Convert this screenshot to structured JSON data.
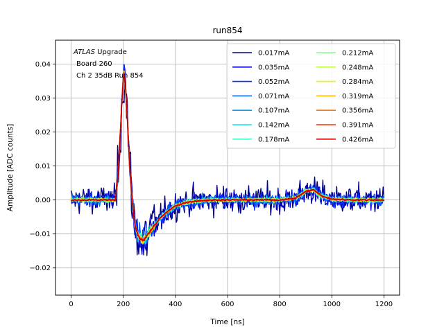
{
  "chart_data": {
    "type": "line",
    "title": "run854",
    "xlabel": "Time [ns]",
    "ylabel": "Amplitude [ADC counts]",
    "xlim": [
      -60,
      1260
    ],
    "ylim": [
      -0.028,
      0.047
    ],
    "xticks": [
      0,
      200,
      400,
      600,
      800,
      1000,
      1200
    ],
    "yticks": [
      -0.02,
      -0.01,
      0.0,
      0.01,
      0.02,
      0.03,
      0.04
    ],
    "xtick_labels": [
      "0",
      "200",
      "400",
      "600",
      "800",
      "1000",
      "1200"
    ],
    "ytick_labels": [
      "−0.02",
      "−0.01",
      "0.00",
      "0.01",
      "0.02",
      "0.03",
      "0.04"
    ],
    "grid": true,
    "legend_position": "top-right",
    "annotation": {
      "line1_italic": "ATLAS",
      "line1_rest": " Upgrade",
      "line2": "Board 260",
      "line3": "Ch 2 35dB  Run 854"
    },
    "pulse_shape": {
      "t": [
        0,
        170,
        178,
        186,
        194,
        202,
        210,
        218,
        226,
        234,
        242,
        250,
        258,
        266,
        274,
        282,
        290,
        300,
        320,
        340,
        360,
        380,
        400,
        430,
        460,
        500,
        550,
        600,
        700,
        800,
        860,
        900,
        930,
        960,
        1000,
        1100,
        1200
      ],
      "y": [
        0.0,
        0.0,
        0.006,
        0.016,
        0.028,
        0.038,
        0.032,
        0.02,
        0.008,
        0.0,
        -0.006,
        -0.009,
        -0.0105,
        -0.0115,
        -0.0118,
        -0.0115,
        -0.0108,
        -0.0095,
        -0.0075,
        -0.0055,
        -0.004,
        -0.0028,
        -0.0018,
        -0.001,
        -0.0005,
        -0.0002,
        0.0,
        0.0,
        0.0,
        0.0,
        0.0005,
        0.0025,
        0.003,
        0.0012,
        0.0002,
        0.0,
        0.0
      ]
    },
    "series": [
      {
        "name": "0.017mA",
        "color": "#00008f",
        "noise": 0.0035
      },
      {
        "name": "0.035mA",
        "color": "#0000c8",
        "noise": 0.0022
      },
      {
        "name": "0.052mA",
        "color": "#0a28ff",
        "noise": 0.0016
      },
      {
        "name": "0.071mA",
        "color": "#0064ff",
        "noise": 0.0012
      },
      {
        "name": "0.107mA",
        "color": "#00a0f0",
        "noise": 0.0009
      },
      {
        "name": "0.142mA",
        "color": "#00e8f0",
        "noise": 0.0007
      },
      {
        "name": "0.178mA",
        "color": "#40ffc8",
        "noise": 0.0006
      },
      {
        "name": "0.212mA",
        "color": "#80ff80",
        "noise": 0.0005
      },
      {
        "name": "0.248mA",
        "color": "#c0ff3c",
        "noise": 0.00045
      },
      {
        "name": "0.284mA",
        "color": "#f0f000",
        "noise": 0.0004
      },
      {
        "name": "0.319mA",
        "color": "#ffb400",
        "noise": 0.00035
      },
      {
        "name": "0.356mA",
        "color": "#ff7800",
        "noise": 0.0003
      },
      {
        "name": "0.391mA",
        "color": "#ff3200",
        "noise": 0.00025
      },
      {
        "name": "0.426mA",
        "color": "#c80000",
        "noise": 0.0002
      }
    ]
  }
}
